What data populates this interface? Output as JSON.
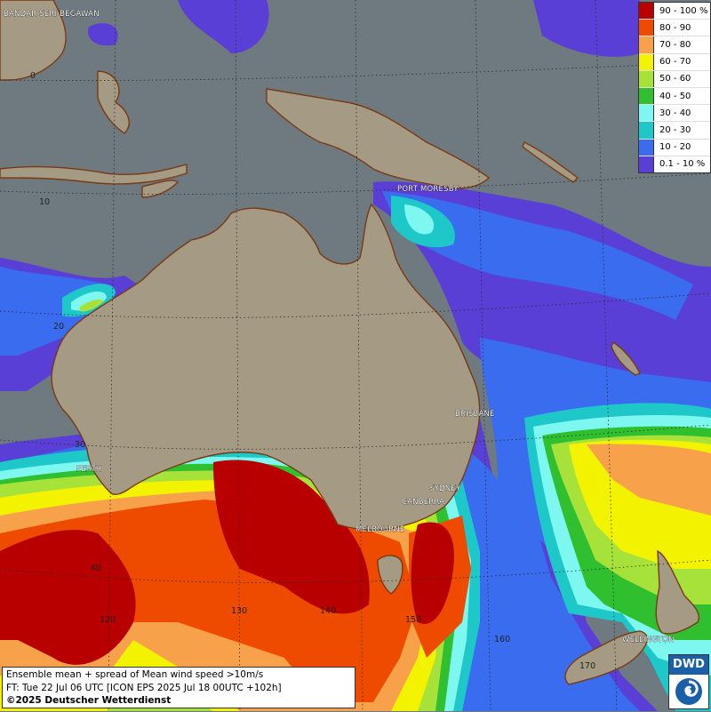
{
  "legend": {
    "items": [
      {
        "label": "90 - 100 %",
        "color": "#b80000"
      },
      {
        "label": "80 - 90",
        "color": "#ee4b00"
      },
      {
        "label": "70 - 80",
        "color": "#f7a24a"
      },
      {
        "label": "60 - 70",
        "color": "#f3f300"
      },
      {
        "label": "50 - 60",
        "color": "#a6e23a"
      },
      {
        "label": "40 - 50",
        "color": "#2fbf2f"
      },
      {
        "label": "30 - 40",
        "color": "#7ef7f0"
      },
      {
        "label": "20 - 30",
        "color": "#1ec8c8"
      },
      {
        "label": "10 - 20",
        "color": "#3a6cf0"
      },
      {
        "label": "0.1 - 10 %",
        "color": "#5a3fd6"
      }
    ]
  },
  "cities": [
    "BANDAR SERI BEGAWAN",
    "PORT MORESBY",
    "BRISBANE",
    "PERTH",
    "SYDNEY",
    "CANBERRA",
    "MELBOURNE",
    "WELLINGTON"
  ],
  "grid_labels": {
    "latitudes": [
      "0",
      "10",
      "20",
      "30",
      "40"
    ],
    "longitudes": [
      "120",
      "130",
      "140",
      "150",
      "160",
      "170"
    ]
  },
  "info": {
    "line1": "Ensemble mean + spread of Mean wind speed >10m/s",
    "line2": "FT: Tue 22 Jul 06 UTC [ICON EPS 2025 Jul 18 00UTC +102h]",
    "copyright": "©2025 Deutscher Wetterdienst"
  },
  "logo": {
    "text": "DWD"
  },
  "colors": {
    "ocean": "#6f7a80",
    "land": "#a59b85",
    "coast": "#7a3a10"
  }
}
